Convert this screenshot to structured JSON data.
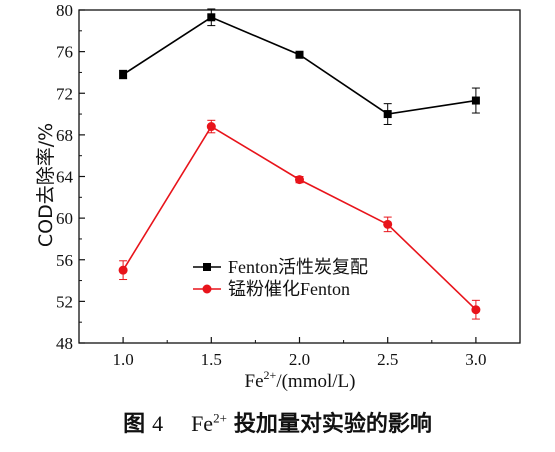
{
  "chart_data": {
    "type": "line",
    "xlabel_main": "Fe",
    "xlabel_sup": "2+",
    "xlabel_rest": "/(mmol/L)",
    "ylabel": "COD去除率/%",
    "x": [
      1.0,
      1.5,
      2.0,
      2.5,
      3.0
    ],
    "xticks": [
      "1.0",
      "1.5",
      "2.0",
      "2.5",
      "3.0"
    ],
    "yticks": [
      "48",
      "52",
      "56",
      "60",
      "64",
      "68",
      "72",
      "76",
      "80"
    ],
    "ylim": [
      48,
      80
    ],
    "xlim": [
      0.75,
      3.25
    ],
    "grid": false,
    "legend_position": "middle-right",
    "series": [
      {
        "name": "Fenton活性炭复配",
        "marker": "square",
        "color": "#000000",
        "values": [
          73.8,
          79.3,
          75.7,
          70.0,
          71.3
        ],
        "errors": [
          0.4,
          0.8,
          0.3,
          1.0,
          1.2
        ]
      },
      {
        "name": "锰粉催化Fenton",
        "marker": "circle",
        "color": "#e8141b",
        "values": [
          55.0,
          68.8,
          63.7,
          59.4,
          51.2
        ],
        "errors": [
          0.9,
          0.6,
          0.3,
          0.7,
          0.9
        ]
      }
    ]
  },
  "caption": {
    "figure_label": "图",
    "figure_number": "4",
    "fe_symbol": "Fe",
    "fe_charge": "2+",
    "title": "投加量对实验的影响"
  }
}
